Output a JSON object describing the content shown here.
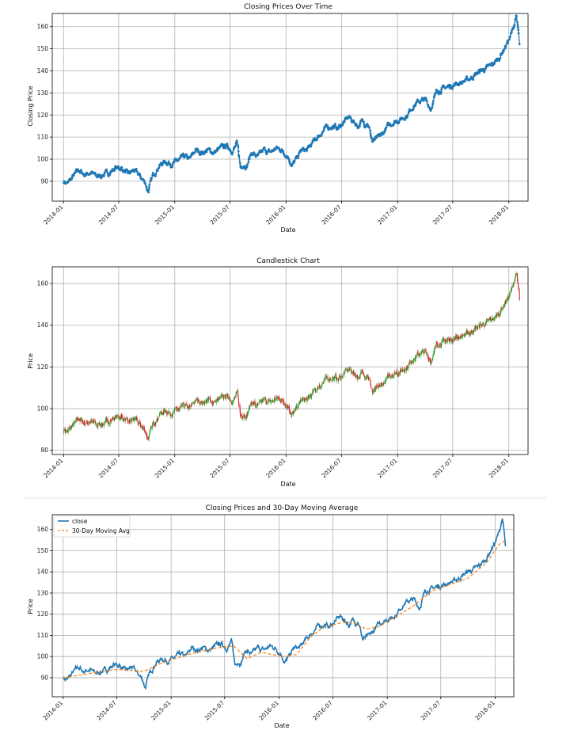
{
  "chart_data": [
    {
      "type": "line",
      "title": "Closing Prices Over Time",
      "xlabel": "Date",
      "ylabel": "Closing Price",
      "x_ticks": [
        "2014-01",
        "2014-07",
        "2015-01",
        "2015-07",
        "2016-01",
        "2016-07",
        "2017-01",
        "2017-07",
        "2018-01"
      ],
      "y_ticks": [
        90,
        100,
        110,
        120,
        130,
        140,
        150,
        160
      ],
      "ylim": [
        81,
        166
      ],
      "grid": true,
      "marker": "dot",
      "series": [
        {
          "color": "#1f77b4",
          "x": [
            "2014-01-02",
            "2014-01-15",
            "2014-02-01",
            "2014-02-20",
            "2014-03-10",
            "2014-04-01",
            "2014-04-20",
            "2014-05-10",
            "2014-06-01",
            "2014-06-20",
            "2014-07-10",
            "2014-08-01",
            "2014-08-20",
            "2014-09-10",
            "2014-09-28",
            "2014-10-05",
            "2014-10-20",
            "2014-11-10",
            "2014-12-01",
            "2014-12-20",
            "2015-01-10",
            "2015-02-01",
            "2015-02-20",
            "2015-03-10",
            "2015-04-01",
            "2015-04-20",
            "2015-05-10",
            "2015-06-01",
            "2015-06-20",
            "2015-07-10",
            "2015-07-25",
            "2015-08-05",
            "2015-08-15",
            "2015-08-25",
            "2015-09-10",
            "2015-10-01",
            "2015-10-20",
            "2015-11-10",
            "2015-12-01",
            "2015-12-20",
            "2016-01-10",
            "2016-01-20",
            "2016-02-05",
            "2016-02-20",
            "2016-03-10",
            "2016-04-01",
            "2016-04-20",
            "2016-05-10",
            "2016-06-01",
            "2016-06-20",
            "2016-07-10",
            "2016-07-25",
            "2016-08-10",
            "2016-08-25",
            "2016-09-05",
            "2016-09-15",
            "2016-09-25",
            "2016-10-10",
            "2016-10-25",
            "2016-11-10",
            "2016-12-01",
            "2016-12-20",
            "2017-01-10",
            "2017-02-01",
            "2017-02-20",
            "2017-03-10",
            "2017-04-01",
            "2017-04-20",
            "2017-05-10",
            "2017-06-01",
            "2017-06-20",
            "2017-07-10",
            "2017-08-01",
            "2017-08-20",
            "2017-09-10",
            "2017-10-01",
            "2017-10-20",
            "2017-11-10",
            "2017-12-01",
            "2017-12-20",
            "2018-01-05",
            "2018-01-15",
            "2018-01-25",
            "2018-02-01",
            "2018-02-05"
          ],
          "values": [
            90,
            89,
            92,
            95,
            93,
            94,
            92,
            93,
            94,
            96,
            96,
            93,
            95,
            92,
            89,
            85,
            92,
            97,
            99,
            98,
            99,
            101,
            100,
            104,
            103,
            104,
            103,
            105,
            106,
            104,
            107,
            96,
            98,
            97,
            103,
            101,
            104,
            103,
            105,
            104,
            101,
            97,
            100,
            104,
            104,
            108,
            111,
            114,
            115,
            114,
            117,
            119,
            117,
            115,
            117,
            116,
            117,
            108,
            109,
            111,
            115,
            117,
            118,
            120,
            124,
            126,
            127,
            123,
            131,
            132,
            133,
            134,
            135,
            136,
            138,
            140,
            141,
            143,
            146,
            151,
            155,
            159,
            165,
            158,
            151
          ]
        }
      ]
    },
    {
      "type": "candlestick",
      "title": "Candlestick Chart",
      "xlabel": "Date",
      "ylabel": "Price",
      "x_ticks": [
        "2014-01",
        "2014-07",
        "2015-01",
        "2015-07",
        "2016-01",
        "2016-07",
        "2017-01",
        "2017-07",
        "2018-01"
      ],
      "y_ticks": [
        80,
        100,
        120,
        140,
        160
      ],
      "ylim": [
        78,
        168
      ],
      "grid": true,
      "up_color": "#2ca02c",
      "down_color": "#d62728"
    },
    {
      "type": "line",
      "title": "Closing Prices and 30-Day Moving Average",
      "xlabel": "Date",
      "ylabel": "Price",
      "x_ticks": [
        "2014-01",
        "2014-07",
        "2015-01",
        "2015-07",
        "2016-01",
        "2016-07",
        "2017-01",
        "2017-07",
        "2018-01"
      ],
      "y_ticks": [
        90,
        100,
        110,
        120,
        130,
        140,
        150,
        160
      ],
      "ylim": [
        81,
        167
      ],
      "grid": true,
      "legend": "top-left",
      "series": [
        {
          "name": "close",
          "color": "#1f77b4",
          "style": "solid"
        },
        {
          "name": "30-Day Moving Avg",
          "color": "#ff7f0e",
          "style": "dashed",
          "x": [
            "2014-01-02",
            "2014-04-01",
            "2014-07-01",
            "2014-10-01",
            "2014-12-01",
            "2015-03-01",
            "2015-06-01",
            "2015-08-01",
            "2015-09-15",
            "2015-11-01",
            "2016-01-15",
            "2016-03-01",
            "2016-04-15",
            "2016-06-01",
            "2016-08-01",
            "2016-09-15",
            "2016-10-20",
            "2016-12-01",
            "2017-02-01",
            "2017-04-01",
            "2017-06-01",
            "2017-08-01",
            "2017-10-01",
            "2017-12-01",
            "2018-01-15",
            "2018-02-05"
          ],
          "values": [
            90,
            92,
            94,
            93,
            97,
            101,
            104,
            105,
            99,
            102,
            100,
            101,
            109,
            114,
            116,
            116,
            113,
            114,
            119,
            124,
            131,
            134,
            137,
            144,
            153,
            155
          ]
        }
      ]
    }
  ]
}
